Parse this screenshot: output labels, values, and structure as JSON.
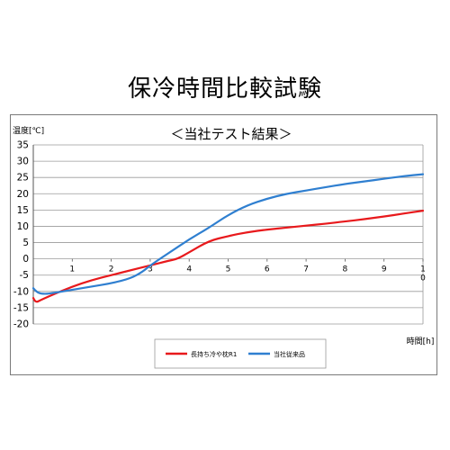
{
  "page": {
    "title": "保冷時間比較試験"
  },
  "chart_data": {
    "type": "line",
    "title": "＜当社テスト結果＞",
    "ylabel": "温度[℃]",
    "xlabel": "時間[h]",
    "ylim": [
      -20,
      35
    ],
    "xlim": [
      0,
      10
    ],
    "y_ticks": [
      "35",
      "30",
      "25",
      "20",
      "15",
      "10",
      "5",
      "0",
      "-5",
      "-10",
      "-15",
      "-20"
    ],
    "x_ticks": [
      "1",
      "2",
      "3",
      "4",
      "5",
      "6",
      "7",
      "8",
      "9",
      "1"
    ],
    "x_tick_extra": "0",
    "grid": true,
    "legend_position": "bottom",
    "series": [
      {
        "name": "長持ち冷や枕R1",
        "color": "#e8191c",
        "points": [
          [
            0,
            -12
          ],
          [
            0.05,
            -13.5
          ],
          [
            0.2,
            -12.6
          ],
          [
            0.5,
            -11
          ],
          [
            1,
            -8.5
          ],
          [
            1.5,
            -6.5
          ],
          [
            2,
            -5
          ],
          [
            2.5,
            -3.5
          ],
          [
            3,
            -2
          ],
          [
            3.5,
            -0.5
          ],
          [
            3.7,
            0
          ],
          [
            4,
            2
          ],
          [
            4.5,
            5.5
          ],
          [
            5,
            7
          ],
          [
            5.5,
            8.2
          ],
          [
            6,
            9
          ],
          [
            6.5,
            9.6
          ],
          [
            7,
            10.2
          ],
          [
            7.5,
            10.8
          ],
          [
            8,
            11.5
          ],
          [
            8.5,
            12.2
          ],
          [
            9,
            13
          ],
          [
            9.5,
            13.9
          ],
          [
            10,
            14.8
          ]
        ]
      },
      {
        "name": "当社従来品",
        "color": "#2f7fd0",
        "points": [
          [
            0,
            -9
          ],
          [
            0.1,
            -10.5
          ],
          [
            0.3,
            -10.8
          ],
          [
            0.5,
            -10.5
          ],
          [
            1,
            -9.5
          ],
          [
            1.5,
            -8.5
          ],
          [
            2,
            -7.5
          ],
          [
            2.5,
            -6
          ],
          [
            2.8,
            -4
          ],
          [
            3,
            -2
          ],
          [
            3.5,
            2
          ],
          [
            4,
            6
          ],
          [
            4.5,
            9.5
          ],
          [
            5,
            13.5
          ],
          [
            5.5,
            16.5
          ],
          [
            6,
            18.5
          ],
          [
            6.5,
            20
          ],
          [
            7,
            21
          ],
          [
            7.5,
            22
          ],
          [
            8,
            23
          ],
          [
            8.5,
            23.8
          ],
          [
            9,
            24.6
          ],
          [
            9.5,
            25.4
          ],
          [
            10,
            26
          ]
        ]
      }
    ]
  }
}
